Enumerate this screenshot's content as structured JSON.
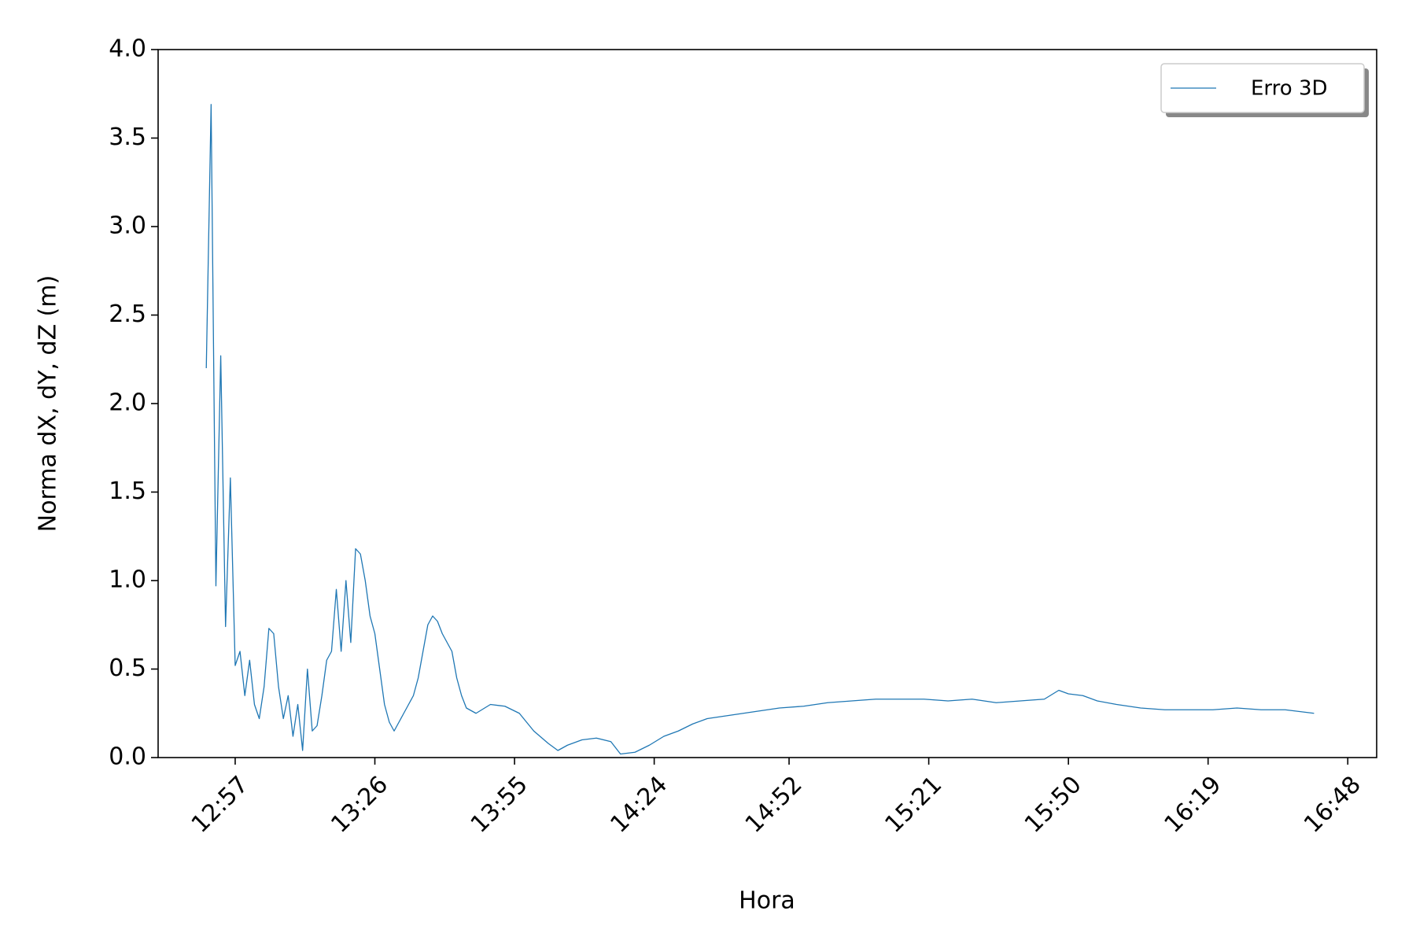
{
  "chart_data": {
    "type": "line",
    "x_label": "Hora",
    "y_label": "Norma dX, dY, dZ (m)",
    "x": [
      "12:51",
      "12:52",
      "12:53",
      "12:54",
      "12:55",
      "12:56",
      "12:57",
      "12:58",
      "12:59",
      "13:00",
      "13:01",
      "13:02",
      "13:03",
      "13:04",
      "13:05",
      "13:06",
      "13:07",
      "13:08",
      "13:09",
      "13:10",
      "13:11",
      "13:12",
      "13:13",
      "13:14",
      "13:15",
      "13:16",
      "13:17",
      "13:18",
      "13:19",
      "13:20",
      "13:21",
      "13:22",
      "13:23",
      "13:24",
      "13:25",
      "13:26",
      "13:27",
      "13:28",
      "13:29",
      "13:30",
      "13:32",
      "13:33",
      "13:34",
      "13:35",
      "13:36",
      "13:37",
      "13:38",
      "13:39",
      "13:40",
      "13:42",
      "13:43",
      "13:44",
      "13:45",
      "13:47",
      "13:50",
      "13:53",
      "13:56",
      "13:59",
      "14:02",
      "14:04",
      "14:06",
      "14:09",
      "14:12",
      "14:15",
      "14:17",
      "14:20",
      "14:23",
      "14:26",
      "14:29",
      "14:32",
      "14:35",
      "14:40",
      "14:45",
      "14:50",
      "14:55",
      "15:00",
      "15:05",
      "15:10",
      "15:15",
      "15:20",
      "15:25",
      "15:30",
      "15:35",
      "15:40",
      "15:45",
      "15:48",
      "15:50",
      "15:53",
      "15:56",
      "16:00",
      "16:05",
      "16:10",
      "16:15",
      "16:20",
      "16:25",
      "16:30",
      "16:35",
      "16:41"
    ],
    "series": [
      {
        "name": "Erro 3D",
        "color": "#1f77b4",
        "values": [
          2.2,
          3.69,
          0.97,
          2.27,
          0.74,
          1.58,
          0.52,
          0.6,
          0.35,
          0.55,
          0.3,
          0.22,
          0.4,
          0.73,
          0.7,
          0.4,
          0.22,
          0.35,
          0.12,
          0.3,
          0.04,
          0.5,
          0.15,
          0.18,
          0.35,
          0.55,
          0.6,
          0.95,
          0.6,
          1.0,
          0.65,
          1.18,
          1.15,
          1.0,
          0.8,
          0.7,
          0.5,
          0.3,
          0.2,
          0.15,
          0.25,
          0.3,
          0.35,
          0.45,
          0.6,
          0.75,
          0.8,
          0.77,
          0.7,
          0.6,
          0.45,
          0.35,
          0.28,
          0.25,
          0.3,
          0.29,
          0.25,
          0.15,
          0.08,
          0.04,
          0.07,
          0.1,
          0.11,
          0.09,
          0.02,
          0.03,
          0.07,
          0.12,
          0.15,
          0.19,
          0.22,
          0.24,
          0.26,
          0.28,
          0.29,
          0.31,
          0.32,
          0.33,
          0.33,
          0.33,
          0.32,
          0.33,
          0.31,
          0.32,
          0.33,
          0.38,
          0.36,
          0.35,
          0.32,
          0.3,
          0.28,
          0.27,
          0.27,
          0.27,
          0.28,
          0.27,
          0.27,
          0.25
        ]
      }
    ],
    "xlim": [
      "12:41",
      "16:54"
    ],
    "xticks": [
      "12:57",
      "13:26",
      "13:55",
      "14:24",
      "14:52",
      "15:21",
      "15:50",
      "16:19",
      "16:48"
    ],
    "ylim": [
      0,
      4
    ],
    "yticks": [
      {
        "value": 0,
        "label": "0.0"
      },
      0.5,
      {
        "value": 1,
        "label": "1.0"
      },
      1.5,
      {
        "value": 2,
        "label": "2.0"
      },
      2.5,
      {
        "value": 3,
        "label": "3.0"
      },
      3.5,
      {
        "value": 4,
        "label": "4.0"
      }
    ],
    "legend": "upper right"
  }
}
